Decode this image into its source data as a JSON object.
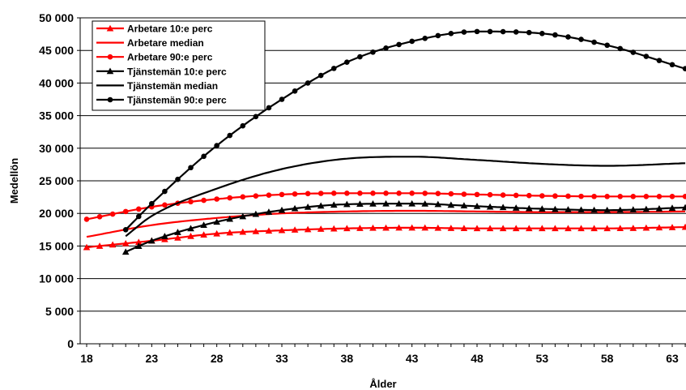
{
  "chart_data": {
    "type": "line",
    "xlabel": "Ålder",
    "ylabel": "Medellön",
    "xlim": [
      18,
      64
    ],
    "ylim": [
      0,
      50000
    ],
    "x_ticks": [
      18,
      23,
      28,
      33,
      38,
      43,
      48,
      53,
      58,
      63
    ],
    "x_tick_labels": [
      "18",
      "23",
      "28",
      "33",
      "38",
      "43",
      "48",
      "53",
      "58",
      "63"
    ],
    "y_ticks": [
      0,
      5000,
      10000,
      15000,
      20000,
      25000,
      30000,
      35000,
      40000,
      45000,
      50000
    ],
    "y_tick_labels": [
      "0",
      "5 000",
      "10 000",
      "15 000",
      "20 000",
      "25 000",
      "30 000",
      "35 000",
      "40 000",
      "45 000",
      "50 000"
    ],
    "grid": "horizontal",
    "legend_position": "top-left",
    "series": [
      {
        "name": "Arbetare 10:e perc",
        "color": "#ff0000",
        "marker": "triangle",
        "x": [
          18,
          23,
          28,
          33,
          38,
          43,
          48,
          53,
          58,
          64
        ],
        "y": [
          14800,
          15800,
          16900,
          17400,
          17700,
          17800,
          17700,
          17700,
          17700,
          17900
        ]
      },
      {
        "name": "Arbetare median",
        "color": "#ff0000",
        "marker": "none",
        "x": [
          18,
          23,
          28,
          33,
          38,
          43,
          48,
          53,
          58,
          64
        ],
        "y": [
          16400,
          18200,
          19300,
          20000,
          20300,
          20400,
          20300,
          20200,
          20200,
          20300
        ]
      },
      {
        "name": "Arbetare 90:e perc",
        "color": "#ff0000",
        "marker": "circle",
        "x": [
          18,
          23,
          28,
          33,
          38,
          43,
          48,
          53,
          58,
          64
        ],
        "y": [
          19100,
          21000,
          22200,
          22900,
          23100,
          23100,
          22900,
          22700,
          22600,
          22600
        ]
      },
      {
        "name": "Tjänstemän 10:e perc",
        "color": "#000000",
        "marker": "triangle",
        "x": [
          21,
          23,
          28,
          33,
          38,
          43,
          48,
          53,
          58,
          64
        ],
        "y": [
          14100,
          15800,
          18700,
          20500,
          21400,
          21500,
          21100,
          20700,
          20500,
          20900
        ]
      },
      {
        "name": "Tjänstemän median",
        "color": "#000000",
        "marker": "none",
        "x": [
          21,
          23,
          28,
          33,
          38,
          43,
          48,
          53,
          58,
          64
        ],
        "y": [
          16500,
          19600,
          23800,
          26800,
          28400,
          28700,
          28200,
          27600,
          27300,
          27700
        ]
      },
      {
        "name": "Tjänstemän 90:e perc",
        "color": "#000000",
        "marker": "circle",
        "x": [
          21,
          23,
          28,
          33,
          38,
          43,
          48,
          53,
          58,
          64
        ],
        "y": [
          17500,
          21500,
          30400,
          37500,
          43200,
          46400,
          47900,
          47600,
          45800,
          42200
        ]
      }
    ]
  }
}
